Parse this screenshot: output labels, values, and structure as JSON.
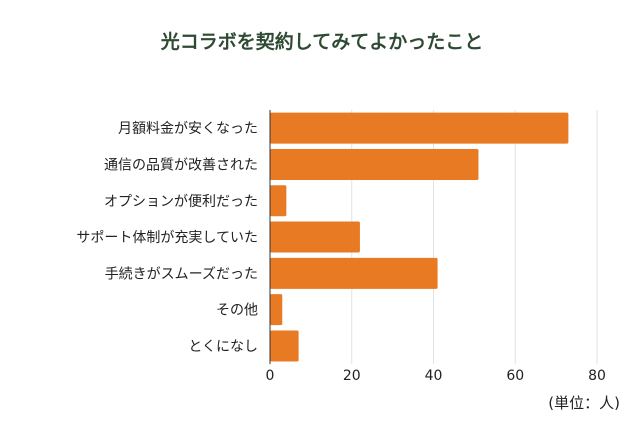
{
  "chart_data": {
    "type": "bar",
    "orientation": "horizontal",
    "title": "光コラボを契約してみてよかったこと",
    "unit": "(単位：人)",
    "categories": [
      "月額料金が安くなった",
      "通信の品質が改善された",
      "オプションが便利だった",
      "サポート体制が充実していた",
      "手続きがスムーズだった",
      "その他",
      "とくになし"
    ],
    "values": [
      73,
      51,
      4,
      22,
      41,
      3,
      7
    ],
    "xlim": [
      0,
      80
    ],
    "xticks": [
      0,
      20,
      40,
      60,
      80
    ],
    "grid": true,
    "bar_color": "#e87a24"
  }
}
